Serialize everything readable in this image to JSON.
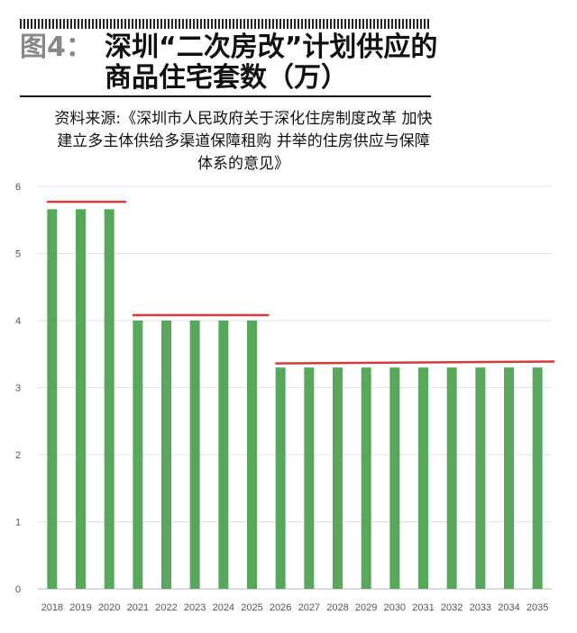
{
  "header": {
    "figure_label": "图4：",
    "title_line1": "深圳“二次房改”计划供应的",
    "title_line2": "商品住宅套数（万）"
  },
  "source": "资料来源:《深圳市人民政府关于深化住房制度改革 加快建立多主体供给多渠道保障租购 并举的住房供应与保障体系的意见》",
  "chart_data": {
    "type": "bar",
    "title": "深圳“二次房改”计划供应的商品住宅套数（万）",
    "categories": [
      "2018",
      "2019",
      "2020",
      "2021",
      "2022",
      "2023",
      "2024",
      "2025",
      "2026",
      "2027",
      "2028",
      "2029",
      "2030",
      "2031",
      "2032",
      "2033",
      "2034",
      "2035"
    ],
    "values": [
      5.66,
      5.66,
      5.66,
      4.0,
      4.0,
      4.0,
      4.0,
      4.0,
      3.3,
      3.3,
      3.3,
      3.3,
      3.3,
      3.3,
      3.3,
      3.3,
      3.3,
      3.3
    ],
    "reference_lines": [
      {
        "from": "2018",
        "to": "2020",
        "y_start": 5.77,
        "y_end": 5.77
      },
      {
        "from": "2021",
        "to": "2025",
        "y_start": 4.08,
        "y_end": 4.08
      },
      {
        "from": "2026",
        "to": "2035",
        "y_start": 3.36,
        "y_end": 3.39
      }
    ],
    "ylim": [
      0,
      6
    ],
    "yticks": [
      0,
      1,
      2,
      3,
      4,
      5,
      6
    ],
    "grid": true,
    "bar_color": "#57a85a",
    "line_color": "#d63a3a"
  }
}
